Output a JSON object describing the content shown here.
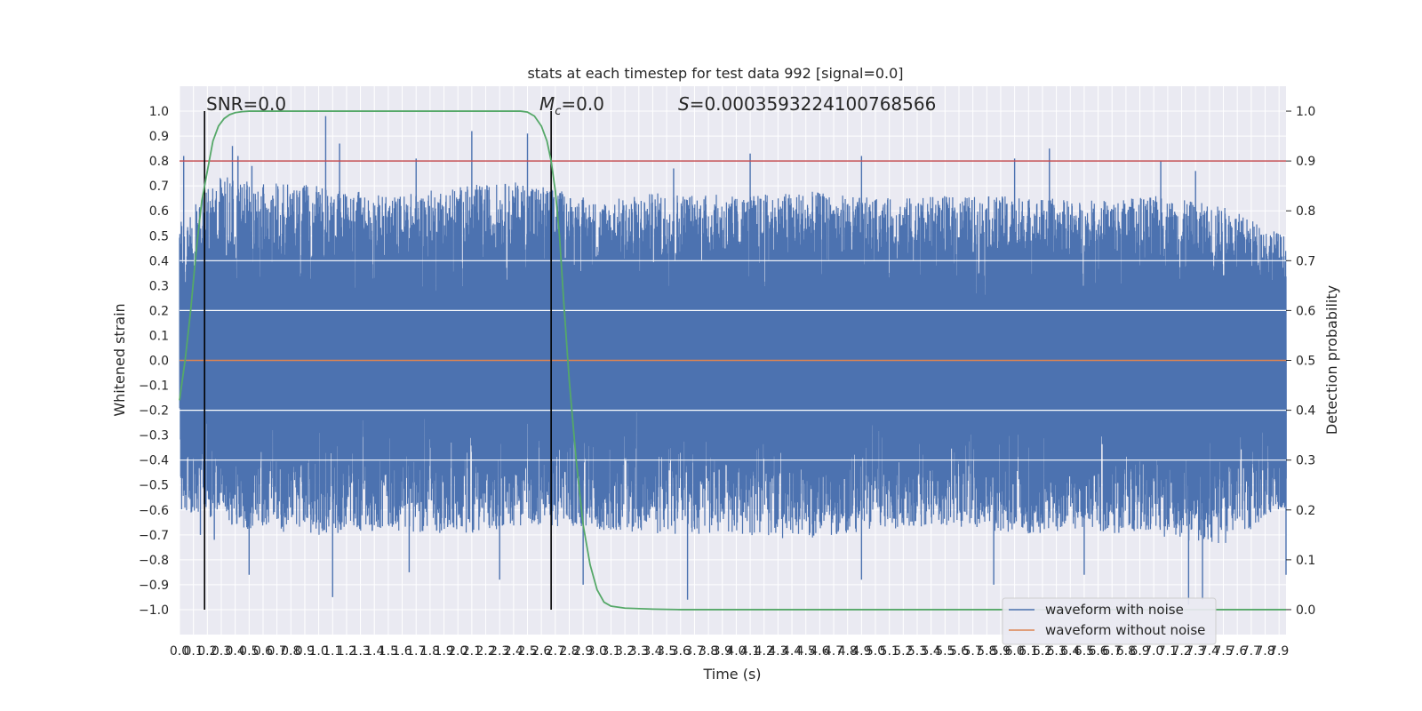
{
  "title": "stats at each timestep for test data 992 [signal=0.0]",
  "xlabel": "Time (s)",
  "ylabel_left": "Whitened strain",
  "ylabel_right": "Detection probability",
  "annotations": {
    "snr": "SNR=0.0",
    "mc_symbol": "M",
    "mc_sub": "c",
    "mc_value": "=0.0",
    "s_symbol": "S",
    "s_value": "=0.0003593224100768566"
  },
  "legend": {
    "placement": "lower-right",
    "items": [
      {
        "label": "waveform with noise",
        "color": "#4c72b0"
      },
      {
        "label": "waveform without noise",
        "color": "#dd8452"
      }
    ]
  },
  "colors": {
    "background": "#eaeaf2",
    "grid": "#ffffff",
    "noise": "#4c72b0",
    "clean": "#dd8452",
    "probability": "#55a868",
    "threshold": "#c44e52",
    "markers": "#000000"
  },
  "chart_data": {
    "type": "line",
    "title": "stats at each timestep for test data 992 [signal=0.0]",
    "xlabel": "Time (s)",
    "ylabel": "Whitened strain",
    "y2label": "Detection probability",
    "xlim": [
      0.0,
      7.95
    ],
    "ylim": [
      -1.1,
      1.1
    ],
    "y2lim": [
      -0.05,
      1.05
    ],
    "x_ticks": [
      0.0,
      0.1,
      0.2,
      0.3,
      0.4,
      0.5,
      0.6,
      0.7,
      0.8,
      0.9,
      1.0,
      1.1,
      1.2,
      1.3,
      1.4,
      1.5,
      1.6,
      1.7,
      1.8,
      1.9,
      2.0,
      2.1,
      2.2,
      2.3,
      2.4,
      2.5,
      2.6,
      2.7,
      2.8,
      2.9,
      3.0,
      3.1,
      3.2,
      3.3,
      3.4,
      3.5,
      3.6,
      3.7,
      3.8,
      3.9,
      4.0,
      4.1,
      4.2,
      4.3,
      4.4,
      4.5,
      4.6,
      4.7,
      4.8,
      4.9,
      5.0,
      5.1,
      5.2,
      5.3,
      5.4,
      5.5,
      5.6,
      5.7,
      5.8,
      5.9,
      6.0,
      6.1,
      6.2,
      6.3,
      6.4,
      6.5,
      6.6,
      6.7,
      6.8,
      6.9,
      7.0,
      7.1,
      7.2,
      7.3,
      7.4,
      7.5,
      7.6,
      7.7,
      7.8,
      7.9
    ],
    "y_ticks": [
      -1.0,
      -0.9,
      -0.8,
      -0.7,
      -0.6,
      -0.5,
      -0.4,
      -0.3,
      -0.2,
      -0.1,
      0.0,
      0.1,
      0.2,
      0.3,
      0.4,
      0.5,
      0.6,
      0.7,
      0.8,
      0.9,
      1.0
    ],
    "y2_ticks": [
      0.0,
      0.1,
      0.2,
      0.3,
      0.4,
      0.5,
      0.6,
      0.7,
      0.8,
      0.9,
      1.0
    ],
    "grid": true,
    "legend_placement": "lower-right",
    "series": [
      {
        "name": "waveform with noise",
        "axis": "left",
        "color": "#4c72b0",
        "kind": "dense noise trace, approx. 8192 samples over 0-7.95 s",
        "envelope_upper": [
          [
            0.0,
            0.55
          ],
          [
            0.1,
            0.62
          ],
          [
            0.3,
            0.75
          ],
          [
            0.5,
            0.72
          ],
          [
            1.0,
            0.7
          ],
          [
            1.5,
            0.66
          ],
          [
            2.0,
            0.7
          ],
          [
            2.5,
            0.72
          ],
          [
            3.0,
            0.64
          ],
          [
            3.5,
            0.68
          ],
          [
            4.0,
            0.66
          ],
          [
            4.5,
            0.68
          ],
          [
            5.0,
            0.65
          ],
          [
            5.5,
            0.66
          ],
          [
            6.0,
            0.66
          ],
          [
            6.5,
            0.64
          ],
          [
            7.0,
            0.66
          ],
          [
            7.5,
            0.62
          ],
          [
            7.95,
            0.5
          ]
        ],
        "envelope_lower": [
          [
            0.0,
            -0.6
          ],
          [
            0.5,
            -0.68
          ],
          [
            1.0,
            -0.7
          ],
          [
            1.5,
            -0.68
          ],
          [
            2.0,
            -0.7
          ],
          [
            2.5,
            -0.66
          ],
          [
            3.0,
            -0.68
          ],
          [
            3.5,
            -0.7
          ],
          [
            4.0,
            -0.7
          ],
          [
            4.5,
            -0.72
          ],
          [
            5.0,
            -0.68
          ],
          [
            5.5,
            -0.66
          ],
          [
            6.0,
            -0.7
          ],
          [
            6.5,
            -0.68
          ],
          [
            7.0,
            -0.72
          ],
          [
            7.5,
            -0.74
          ],
          [
            7.95,
            -0.6
          ]
        ],
        "peaks": [
          [
            0.03,
            0.82
          ],
          [
            0.18,
            0.62
          ],
          [
            0.38,
            0.86
          ],
          [
            0.42,
            0.82
          ],
          [
            0.52,
            0.78
          ],
          [
            1.05,
            0.98
          ],
          [
            1.15,
            0.87
          ],
          [
            1.7,
            0.81
          ],
          [
            2.1,
            0.92
          ],
          [
            2.5,
            0.91
          ],
          [
            3.55,
            0.77
          ],
          [
            4.1,
            0.83
          ],
          [
            4.9,
            0.82
          ],
          [
            6.0,
            0.81
          ],
          [
            6.25,
            0.85
          ],
          [
            7.05,
            0.8
          ],
          [
            7.3,
            0.76
          ],
          [
            0.15,
            -0.7
          ],
          [
            0.25,
            -0.72
          ],
          [
            0.5,
            -0.86
          ],
          [
            1.1,
            -0.95
          ],
          [
            1.65,
            -0.85
          ],
          [
            2.3,
            -0.88
          ],
          [
            2.9,
            -0.9
          ],
          [
            3.65,
            -0.96
          ],
          [
            4.9,
            -0.88
          ],
          [
            5.85,
            -0.9
          ],
          [
            6.5,
            -0.86
          ],
          [
            7.25,
            -0.98
          ],
          [
            7.35,
            -0.96
          ],
          [
            7.95,
            -0.86
          ]
        ]
      },
      {
        "name": "waveform without noise",
        "axis": "left",
        "color": "#dd8452",
        "x": [
          0.0,
          7.95
        ],
        "y": [
          0.0,
          0.0
        ]
      },
      {
        "name": "detection probability",
        "axis": "right",
        "color": "#55a868",
        "x": [
          0.0,
          0.04,
          0.08,
          0.12,
          0.16,
          0.2,
          0.24,
          0.28,
          0.32,
          0.36,
          0.4,
          0.45,
          0.5,
          0.6,
          0.8,
          1.0,
          1.5,
          2.0,
          2.3,
          2.45,
          2.5,
          2.55,
          2.6,
          2.64,
          2.67,
          2.7,
          2.73,
          2.76,
          2.8,
          2.85,
          2.9,
          2.95,
          3.0,
          3.05,
          3.1,
          3.2,
          3.4,
          3.6,
          4.0,
          5.0,
          6.0,
          7.0,
          7.95
        ],
        "y": [
          0.42,
          0.5,
          0.6,
          0.72,
          0.82,
          0.88,
          0.94,
          0.97,
          0.985,
          0.993,
          0.997,
          0.999,
          1.0,
          1.0,
          1.0,
          1.0,
          1.0,
          1.0,
          1.0,
          1.0,
          0.998,
          0.99,
          0.97,
          0.94,
          0.9,
          0.84,
          0.75,
          0.62,
          0.46,
          0.3,
          0.17,
          0.09,
          0.04,
          0.015,
          0.007,
          0.003,
          0.001,
          0.0,
          0.0,
          0.0,
          0.0,
          0.0,
          0.0
        ]
      },
      {
        "name": "threshold",
        "axis": "right",
        "color": "#c44e52",
        "x": [
          0.0,
          7.95
        ],
        "y": [
          0.9,
          0.9
        ]
      }
    ],
    "vertical_lines": [
      0.18,
      2.67
    ]
  }
}
